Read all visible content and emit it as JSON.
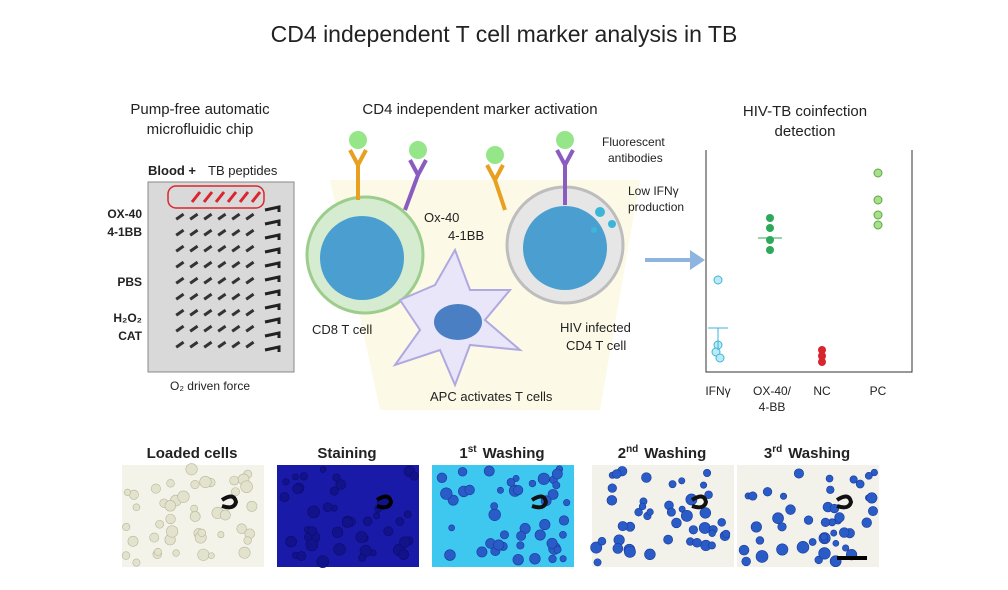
{
  "title": "CD4 independent T cell marker analysis in TB",
  "panels": {
    "chip": {
      "heading": [
        "Pump-free automatic",
        "microfluidic chip"
      ],
      "blood": "Blood +",
      "peptides": "TB peptides",
      "ox40": "OX-40",
      "bb": "4-1BB",
      "pbs": "PBS",
      "h2o2": "H₂O₂",
      "cat": "CAT",
      "force": "O₂ driven force"
    },
    "activation": {
      "heading": "CD4 independent marker activation",
      "ox40": "Ox-40",
      "bb": "4-1BB",
      "antibodies": [
        "Fluorescent",
        "antibodies"
      ],
      "ifn": [
        "Low IFNγ",
        "production"
      ],
      "cd8": "CD8 T cell",
      "cd4": [
        "HIV infected",
        "CD4 T cell"
      ],
      "apc": "APC activates T cells"
    },
    "detection": {
      "heading": [
        "HIV-TB coinfection",
        "detection"
      ],
      "categories": [
        "IFNγ",
        [
          "OX-40/",
          "4-BB"
        ],
        "NC",
        "PC"
      ]
    }
  },
  "images": [
    {
      "label": "Loaded cells"
    },
    {
      "label": "Staining"
    },
    {
      "num": "1",
      "sup": "st",
      "label": "Washing"
    },
    {
      "num": "2",
      "sup": "nd",
      "label": "Washing"
    },
    {
      "num": "3",
      "sup": "rd",
      "label": "Washing"
    }
  ]
}
